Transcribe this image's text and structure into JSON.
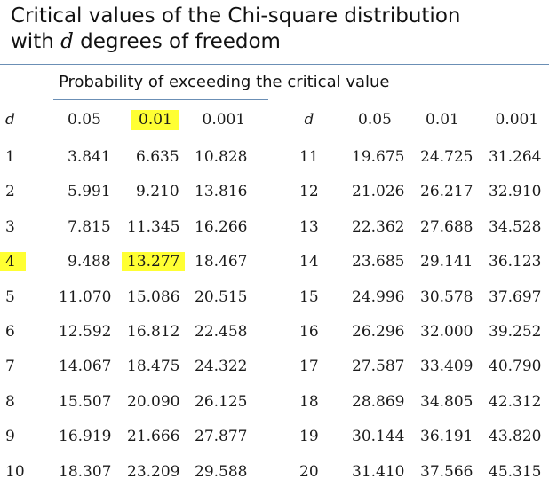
{
  "header": {
    "title": [
      "Critical values of the Chi-square distribution",
      "with",
      "d",
      "degrees of freedom"
    ],
    "subtitle": "Probability of exceeding the critical value"
  },
  "table": {
    "left": {
      "columns": [
        "d",
        "0.05",
        "0.01",
        "0.001"
      ],
      "rows": [
        [
          "1",
          "3.841",
          "6.635",
          "10.828"
        ],
        [
          "2",
          "5.991",
          "9.210",
          "13.816"
        ],
        [
          "3",
          "7.815",
          "11.345",
          "16.266"
        ],
        [
          "4",
          "9.488",
          "13.277",
          "18.467"
        ],
        [
          "5",
          "11.070",
          "15.086",
          "20.515"
        ],
        [
          "6",
          "12.592",
          "16.812",
          "22.458"
        ],
        [
          "7",
          "14.067",
          "18.475",
          "24.322"
        ],
        [
          "8",
          "15.507",
          "20.090",
          "26.125"
        ],
        [
          "9",
          "16.919",
          "21.666",
          "27.877"
        ],
        [
          "10",
          "18.307",
          "23.209",
          "29.588"
        ]
      ]
    },
    "right": {
      "columns": [
        "d",
        "0.05",
        "0.01",
        "0.001"
      ],
      "rows": [
        [
          "11",
          "19.675",
          "24.725",
          "31.264"
        ],
        [
          "12",
          "21.026",
          "26.217",
          "32.910"
        ],
        [
          "13",
          "22.362",
          "27.688",
          "34.528"
        ],
        [
          "14",
          "23.685",
          "29.141",
          "36.123"
        ],
        [
          "15",
          "24.996",
          "30.578",
          "37.697"
        ],
        [
          "16",
          "26.296",
          "32.000",
          "39.252"
        ],
        [
          "17",
          "27.587",
          "33.409",
          "40.790"
        ],
        [
          "18",
          "28.869",
          "34.805",
          "42.312"
        ],
        [
          "19",
          "30.144",
          "36.191",
          "43.820"
        ],
        [
          "20",
          "31.410",
          "37.566",
          "45.315"
        ]
      ]
    }
  }
}
